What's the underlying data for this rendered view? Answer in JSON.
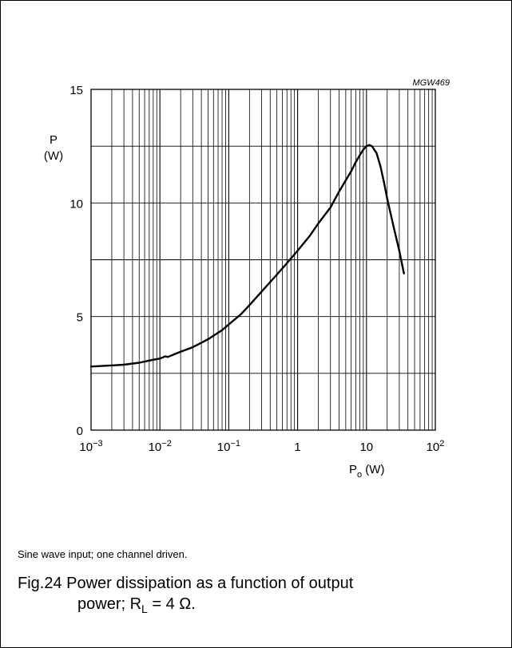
{
  "chart_data": {
    "type": "line",
    "code": "MGW469",
    "ylabel_top": "P",
    "ylabel_unit": "(W)",
    "xlabel_main": "P",
    "xlabel_sub": "o",
    "xlabel_unit": " (W)",
    "x_scale": "log",
    "xlim": [
      0.001,
      100
    ],
    "ylim": [
      0,
      15
    ],
    "grid": true,
    "x_ticks": [
      {
        "value": 0.001,
        "base": "10",
        "exp": "−3"
      },
      {
        "value": 0.01,
        "base": "10",
        "exp": "−2"
      },
      {
        "value": 0.1,
        "base": "10",
        "exp": "−1"
      },
      {
        "value": 1,
        "base": "1",
        "exp": ""
      },
      {
        "value": 10,
        "base": "10",
        "exp": ""
      },
      {
        "value": 100,
        "base": "10",
        "exp": "2"
      }
    ],
    "y_ticks": [
      0,
      5,
      10,
      15
    ],
    "y_minor": [
      2.5,
      7.5,
      12.5
    ],
    "series": [
      {
        "x": [
          0.001,
          0.002,
          0.003,
          0.005,
          0.008,
          0.01,
          0.012,
          0.013,
          0.015,
          0.02,
          0.03,
          0.05,
          0.08,
          0.1,
          0.15,
          0.2,
          0.3,
          0.5,
          0.7,
          1,
          1.5,
          2,
          3,
          4,
          5,
          6,
          7,
          8,
          9,
          10,
          11,
          12,
          14,
          16,
          18,
          20,
          25,
          30,
          35
        ],
        "y": [
          2.8,
          2.85,
          2.88,
          2.97,
          3.1,
          3.15,
          3.25,
          3.22,
          3.3,
          3.45,
          3.65,
          4.0,
          4.4,
          4.65,
          5.1,
          5.5,
          6.1,
          6.85,
          7.35,
          7.9,
          8.55,
          9.1,
          9.8,
          10.5,
          11.0,
          11.4,
          11.8,
          12.1,
          12.35,
          12.5,
          12.55,
          12.5,
          12.2,
          11.6,
          10.9,
          10.2,
          8.9,
          7.9,
          6.9
        ]
      }
    ]
  },
  "note": "Sine wave input; one channel driven.",
  "caption": {
    "line1": "Fig.24  Power dissipation as a function of output",
    "line2_pre": "power; R",
    "line2_sub": "L",
    "line2_post": " = 4 Ω."
  }
}
